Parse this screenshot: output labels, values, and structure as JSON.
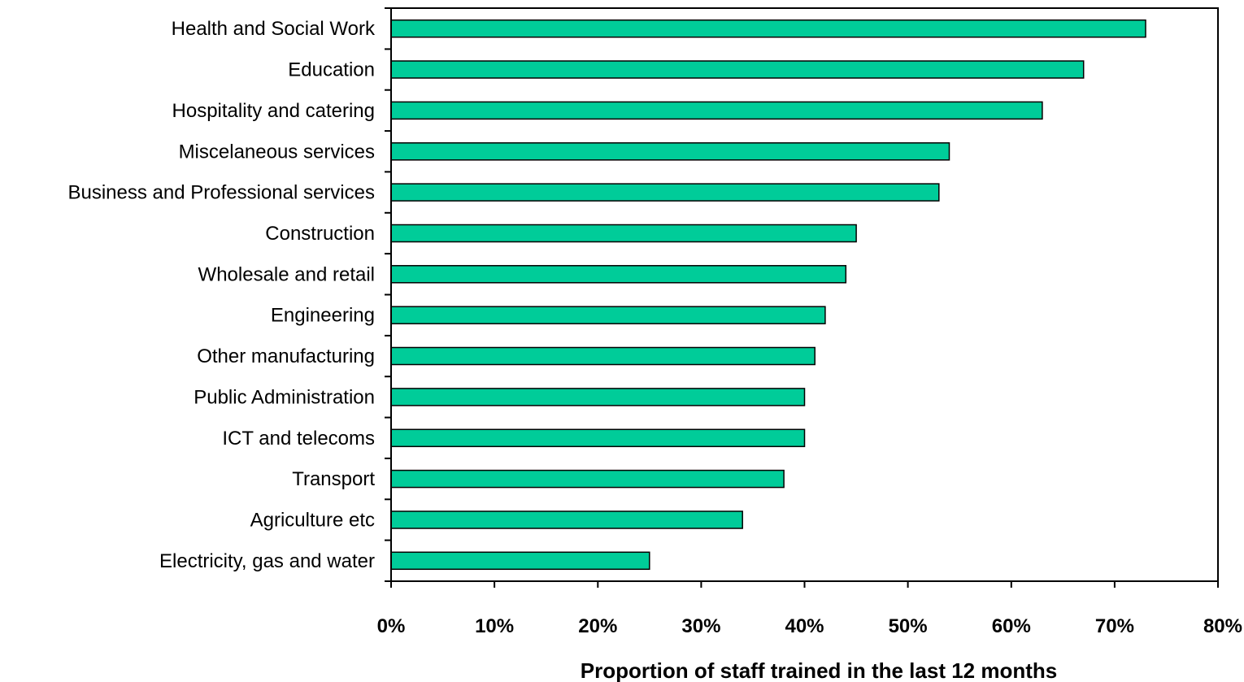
{
  "chart_data": {
    "type": "bar",
    "orientation": "horizontal",
    "title": "",
    "xlabel": "Proportion of staff trained in the last 12 months",
    "ylabel": "",
    "xlim": [
      0,
      80
    ],
    "xticks": [
      "0%",
      "10%",
      "20%",
      "30%",
      "40%",
      "50%",
      "60%",
      "70%",
      "80%"
    ],
    "grid": false,
    "legend": "none",
    "bar_color": "#00cc99",
    "categories": [
      "Health and Social Work",
      "Education",
      "Hospitality and catering",
      "Miscelaneous services",
      "Business and Professional services",
      "Construction",
      "Wholesale and retail",
      "Engineering",
      "Other manufacturing",
      "Public Administration",
      "ICT and telecoms",
      "Transport",
      "Agriculture etc",
      "Electricity, gas and water"
    ],
    "values": [
      73,
      67,
      63,
      54,
      53,
      45,
      44,
      42,
      41,
      40,
      40,
      38,
      34,
      25
    ]
  }
}
